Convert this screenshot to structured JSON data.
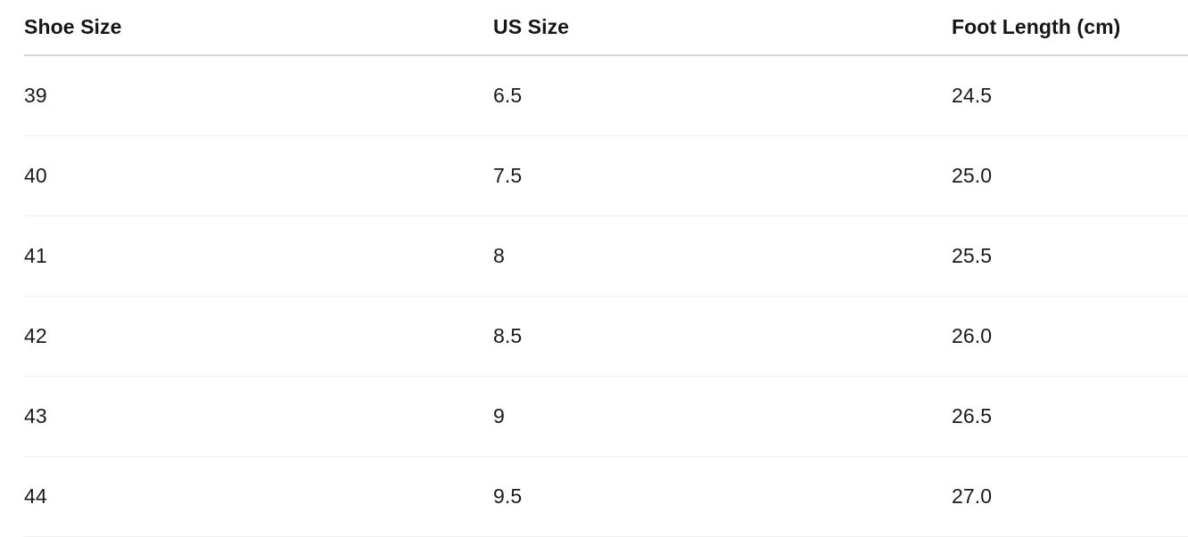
{
  "chart_data": {
    "type": "table",
    "columns": [
      "Shoe Size",
      "US Size",
      "Foot Length (cm)"
    ],
    "rows": [
      [
        "39",
        "6.5",
        "24.5"
      ],
      [
        "40",
        "7.5",
        "25.0"
      ],
      [
        "41",
        "8",
        "25.5"
      ],
      [
        "42",
        "8.5",
        "26.0"
      ],
      [
        "43",
        "9",
        "26.5"
      ],
      [
        "44",
        "9.5",
        "27.0"
      ]
    ],
    "layout": {
      "background": "#ffffff",
      "text_color": "#1a1a1a",
      "header_rule_color": "#d7d7d7",
      "row_rule_color": "#f0f0f0",
      "grid": "horizontal-rules-only",
      "legend": "none"
    }
  }
}
